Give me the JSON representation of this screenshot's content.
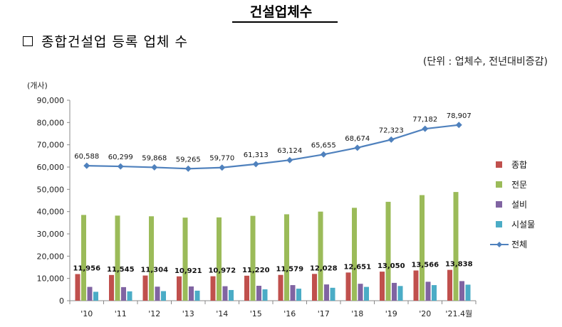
{
  "page": {
    "title": "건설업체수",
    "section_heading": "종합건설업 등록 업체 수",
    "unit_note": "(단위 : 업체수, 전년대비증감)"
  },
  "chart_data": {
    "type": "bar",
    "y_unit_label": "(개사)",
    "categories": [
      "'10",
      "'11",
      "'12",
      "'13",
      "'14",
      "'15",
      "'16",
      "'17",
      "'18",
      "'19",
      "'20",
      "'21.4월"
    ],
    "ylim": [
      0,
      90000
    ],
    "yticks": [
      "0",
      "10,000",
      "20,000",
      "30,000",
      "40,000",
      "50,000",
      "60,000",
      "70,000",
      "80,000",
      "90,000"
    ],
    "legend_position": "right",
    "grid": false,
    "series": [
      {
        "name": "종합",
        "kind": "bar",
        "color": "#c0504d",
        "values": [
          11956,
          11545,
          11304,
          10921,
          10972,
          11220,
          11579,
          12028,
          12651,
          13050,
          13566,
          13838
        ],
        "labels": [
          "11,956",
          "11,545",
          "11,304",
          "10,921",
          "10,972",
          "11,220",
          "11,579",
          "12,028",
          "12,651",
          "13,050",
          "13,566",
          "13,838"
        ]
      },
      {
        "name": "전문",
        "kind": "bar",
        "color": "#9bbb59",
        "values": [
          38500,
          38200,
          37900,
          37300,
          37400,
          38100,
          38800,
          40000,
          41700,
          44400,
          47400,
          48800
        ]
      },
      {
        "name": "설비",
        "kind": "bar",
        "color": "#8064a2",
        "values": [
          6200,
          6100,
          6300,
          6400,
          6500,
          6700,
          7000,
          7300,
          7600,
          8000,
          8500,
          8800
        ]
      },
      {
        "name": "시설물",
        "kind": "bar",
        "color": "#4bacc6",
        "values": [
          4000,
          4200,
          4300,
          4500,
          4800,
          5100,
          5400,
          5800,
          6200,
          6600,
          7000,
          7200
        ]
      },
      {
        "name": "전체",
        "kind": "line",
        "color": "#4f81bd",
        "values": [
          60588,
          60299,
          59868,
          59265,
          59770,
          61313,
          63124,
          65655,
          68674,
          72323,
          77182,
          78907
        ],
        "labels": [
          "60,588",
          "60,299",
          "59,868",
          "59,265",
          "59,770",
          "61,313",
          "63,124",
          "65,655",
          "68,674",
          "72,323",
          "77,182",
          "78,907"
        ]
      }
    ]
  }
}
